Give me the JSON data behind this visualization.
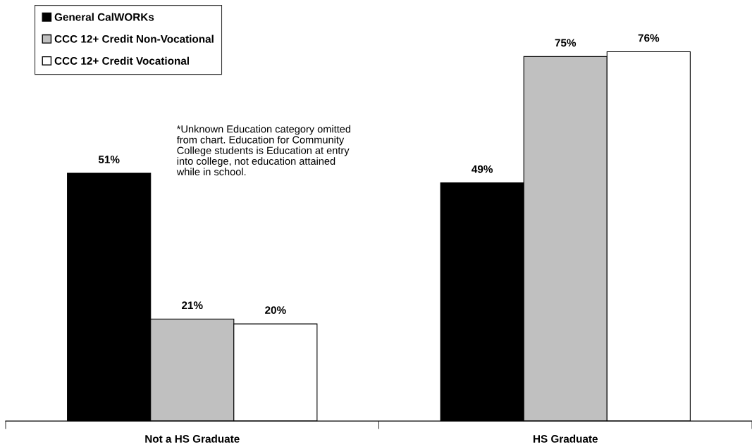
{
  "chart_data": {
    "type": "bar",
    "categories": [
      "Not a HS Graduate",
      "HS Graduate"
    ],
    "series": [
      {
        "name": "General CalWORKs",
        "color": "#000000",
        "values": [
          51,
          49
        ],
        "value_labels": [
          "51%",
          "49%"
        ]
      },
      {
        "name": "CCC 12+ Credit Non-Vocational",
        "color": "#c0c0c0",
        "values": [
          21,
          75
        ],
        "value_labels": [
          "21%",
          "75%"
        ]
      },
      {
        "name": "CCC 12+ Credit Vocational",
        "color": "#ffffff",
        "values": [
          20,
          76
        ],
        "value_labels": [
          "20%",
          "76%"
        ]
      }
    ],
    "grid": false,
    "legend": "top left",
    "annotations": [
      "*Unknown Education category omitted from chart. Education for Community College students is Education at entry into college, not education attained while in school."
    ]
  }
}
